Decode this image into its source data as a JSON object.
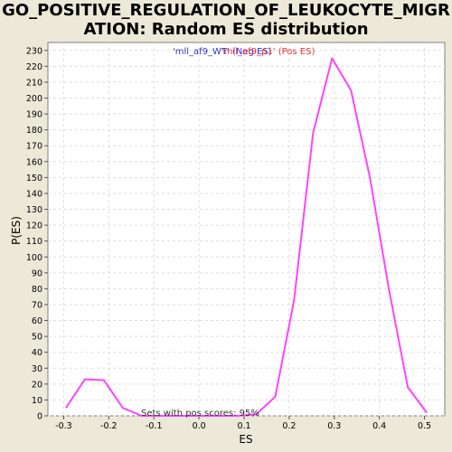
{
  "chart_data": {
    "type": "line",
    "title": "GO_POSITIVE_REGULATION_OF_LEUKOCYTE_MIGR\nATION: Random ES distribution",
    "xlabel": "ES",
    "ylabel": "P(ES)",
    "xlim": [
      -0.335,
      0.545
    ],
    "ylim": [
      0,
      235
    ],
    "xticks": [
      -0.3,
      -0.2,
      -0.1,
      0.0,
      0.1,
      0.2,
      0.3,
      0.4,
      0.5
    ],
    "xtick_labels": [
      "-0.3",
      "-0.2",
      "-0.1",
      "0.0",
      "0.1",
      "0.2",
      "0.3",
      "0.4",
      "0.5"
    ],
    "yticks": [
      0,
      10,
      20,
      30,
      40,
      50,
      60,
      70,
      80,
      90,
      100,
      110,
      120,
      130,
      140,
      150,
      160,
      170,
      180,
      190,
      200,
      210,
      220,
      230
    ],
    "grid": true,
    "legend": [
      {
        "label": "'mll_af9_WT' (Neg ES)",
        "color": "#3333CC"
      },
      {
        "label": "'mll_af9_p1' (Pos ES)",
        "color": "#E8303A"
      }
    ],
    "annotation": "Sets with pos scores: 95%",
    "series": [
      {
        "color": "#FF44FF",
        "x": [
          -0.295,
          -0.253,
          -0.211,
          -0.169,
          -0.127,
          -0.085,
          -0.043,
          0.0,
          0.043,
          0.085,
          0.127,
          0.169,
          0.211,
          0.253,
          0.295,
          0.337,
          0.379,
          0.421,
          0.463,
          0.505
        ],
        "y": [
          5,
          23,
          22.5,
          5,
          0,
          0,
          0,
          0,
          0,
          0,
          1,
          12,
          73,
          178,
          225,
          205,
          150,
          80,
          18,
          2
        ]
      }
    ]
  }
}
